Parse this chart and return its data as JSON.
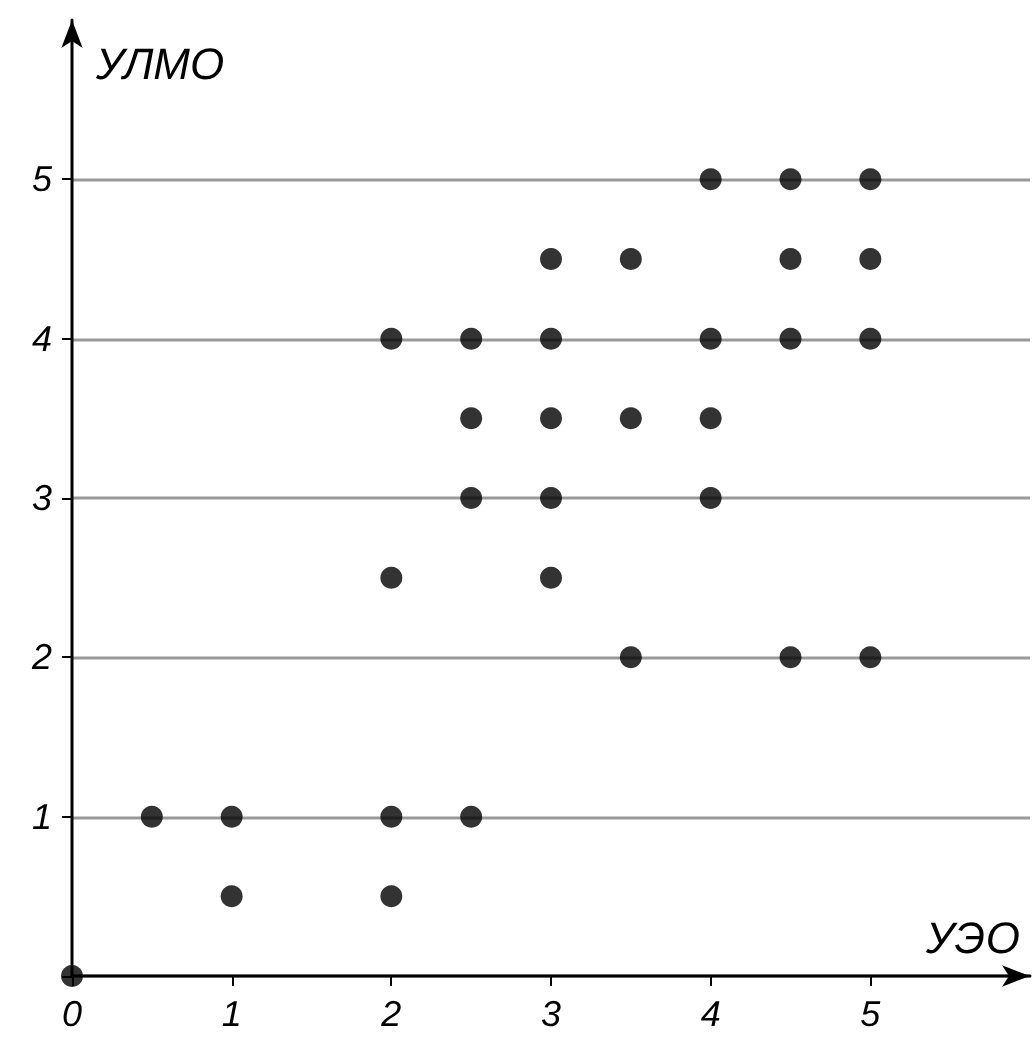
{
  "chart_data": {
    "type": "scatter",
    "xlabel": "УЭО",
    "ylabel": "УЛМО",
    "x": [
      0,
      0.5,
      1,
      1,
      2,
      2,
      2.5,
      2,
      2,
      2.5,
      2.5,
      2.5,
      3,
      3,
      3,
      3,
      3,
      3.5,
      3.5,
      3.5,
      4,
      4,
      4,
      4,
      4.5,
      4.5,
      4.5,
      4.5,
      5,
      5,
      5,
      5
    ],
    "values": [
      0,
      1,
      1,
      0.5,
      1,
      0.5,
      1,
      2.5,
      4,
      4,
      3.5,
      3,
      4.5,
      4,
      3.5,
      3,
      2.5,
      4.5,
      3.5,
      2,
      5,
      4,
      3.5,
      3,
      5,
      4.5,
      4,
      2,
      5,
      4.5,
      4,
      2
    ],
    "color": "#000000",
    "marker": "circle",
    "xlim": [
      0,
      6
    ],
    "ylim": [
      0,
      6
    ],
    "xticks": [
      0,
      1,
      2,
      3,
      4,
      5
    ],
    "yticks": [
      {
        "value": 0,
        "label": null
      },
      1,
      2,
      3,
      4,
      5
    ],
    "grid": "y"
  }
}
